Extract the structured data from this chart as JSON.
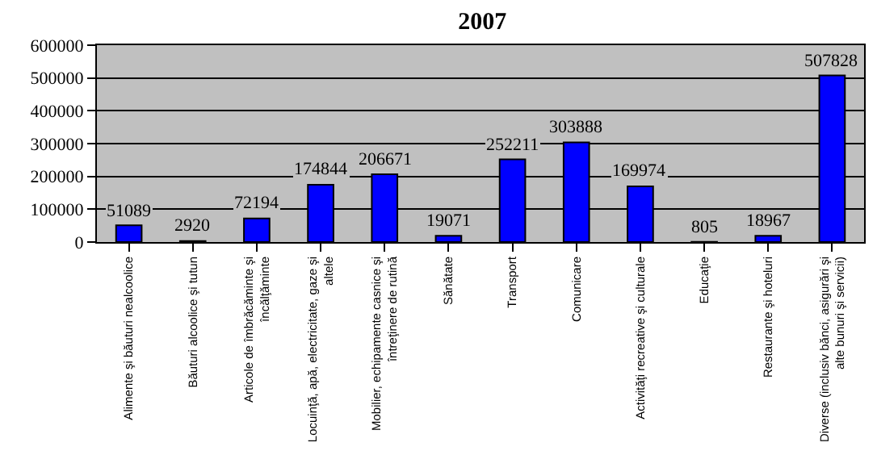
{
  "chart_data": {
    "type": "bar",
    "title": "2007",
    "categories": [
      "Alimente şi băuturi nealcoolice",
      "Băuturi alcoolice şi tutun",
      "Articole de îmbrăcăminte şi încălţăminte",
      "Locuinţă, apă, electricitate, gaze şi altele",
      "Mobilier, echipamente casnice şi întreţinere de rutină",
      "Sănătate",
      "Transport",
      "Comunicare",
      "Activităţi recreative şi culturale",
      "Educaţie",
      "Restaurante şi hoteluri",
      "Diverse (inclusiv bănci, asigurări şi alte bunuri şi servicii)"
    ],
    "values": [
      51089,
      2920,
      72194,
      174844,
      206671,
      19071,
      252211,
      303888,
      169974,
      805,
      18967,
      507828
    ],
    "color": "#0000ff",
    "ylim": [
      0,
      600000
    ],
    "yticks": [
      0,
      100000,
      200000,
      300000,
      400000,
      500000,
      600000
    ],
    "grid": "y",
    "data_labels": true
  }
}
